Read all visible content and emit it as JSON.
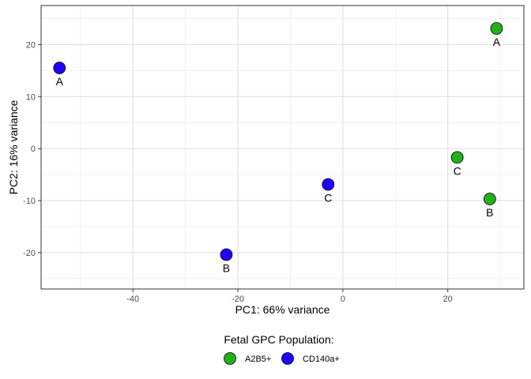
{
  "chart_data": {
    "type": "scatter",
    "xlabel": "PC1: 66% variance",
    "ylabel": "PC2: 16% variance",
    "xlim": [
      -57.5,
      34.5
    ],
    "ylim": [
      -27,
      27.5
    ],
    "x_ticks": [
      -40,
      -20,
      0,
      20
    ],
    "y_ticks": [
      -20,
      -10,
      0,
      10,
      20
    ],
    "grid": true,
    "legend": {
      "title": "Fetal GPC Population:",
      "position": "bottom"
    },
    "series": [
      {
        "name": "A2B5+",
        "color": "#22b11a",
        "points": [
          {
            "x": 29.3,
            "y": 23.1,
            "label": "A"
          },
          {
            "x": 28.0,
            "y": -9.7,
            "label": "B"
          },
          {
            "x": 21.8,
            "y": -1.7,
            "label": "C"
          }
        ]
      },
      {
        "name": "CD140a+",
        "color": "#2200ff",
        "points": [
          {
            "x": -54.0,
            "y": 15.5,
            "label": "A"
          },
          {
            "x": -22.2,
            "y": -20.4,
            "label": "B"
          },
          {
            "x": -2.8,
            "y": -6.9,
            "label": "C"
          }
        ]
      }
    ]
  }
}
